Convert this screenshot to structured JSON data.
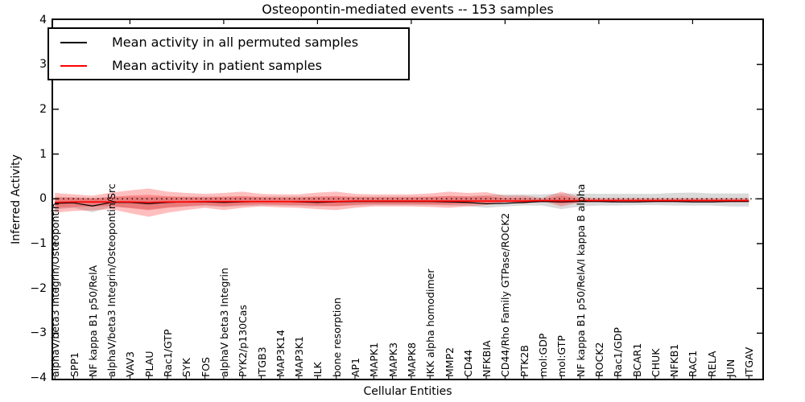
{
  "figure": {
    "title": "Osteopontin-mediated events -- 153 samples",
    "xlabel": "Cellular Entities",
    "ylabel": "Inferred Activity"
  },
  "legend": {
    "entries": [
      {
        "label": "Mean activity in all permuted samples",
        "color": "#000000"
      },
      {
        "label": "Mean activity in patient samples",
        "color": "#ff0000"
      }
    ]
  },
  "axes": {
    "ytick_labels": [
      "4",
      "3",
      "2",
      "1",
      "0",
      "−1",
      "−2",
      "−3",
      "−4"
    ],
    "ytick_values": [
      4,
      3,
      2,
      1,
      0,
      -1,
      -2,
      -3,
      -4
    ]
  },
  "chart_data": {
    "type": "line",
    "title": "Osteopontin-mediated events -- 153 samples",
    "xlabel": "Cellular Entities",
    "ylabel": "Inferred Activity",
    "ylim": [
      -4,
      4
    ],
    "reference_line_y": 0,
    "legend_position": "upper left",
    "grid": false,
    "categories": [
      "alphaV/beta3 Integrin/Osteopontin",
      "SPP1",
      "NF kappa B1 p50/RelA",
      "alphaV/beta3 Integrin/Osteopontin/Src",
      "VAV3",
      "PLAU",
      "Rac1/GTP",
      "SYK",
      "FOS",
      "alphaV beta3 Integrin",
      "PYK2/p130Cas",
      "ITGB3",
      "MAP3K14",
      "MAP3K1",
      "ILK",
      "bone resorption",
      "AP1",
      "MAPK1",
      "MAPK3",
      "MAPK8",
      "IKK alpha homodimer",
      "MMP2",
      "CD44",
      "NFKBIA",
      "CD44/Rho Family GTPase/ROCK2",
      "PTK2B",
      "mol:GDP",
      "mol:GTP",
      "NF kappa B1 p50/RelA/I kappa B alpha",
      "ROCK2",
      "Rac1/GDP",
      "BCAR1",
      "CHUK",
      "NFKB1",
      "RAC1",
      "RELA",
      "JUN",
      "ITGAV"
    ],
    "series": [
      {
        "name": "Mean activity in all permuted samples",
        "color": "#000000",
        "band_color": "#8c8c8c",
        "values": [
          -0.1,
          -0.09,
          -0.16,
          -0.08,
          -0.08,
          -0.11,
          -0.08,
          -0.07,
          -0.07,
          -0.08,
          -0.07,
          -0.06,
          -0.06,
          -0.07,
          -0.08,
          -0.07,
          -0.06,
          -0.06,
          -0.06,
          -0.06,
          -0.06,
          -0.07,
          -0.08,
          -0.11,
          -0.1,
          -0.08,
          -0.06,
          -0.07,
          -0.06,
          -0.06,
          -0.07,
          -0.07,
          -0.06,
          -0.06,
          -0.07,
          -0.07,
          -0.06,
          -0.06
        ],
        "band_upper": [
          0.04,
          0.04,
          0.02,
          0.04,
          0.05,
          0.04,
          0.05,
          0.05,
          0.05,
          0.05,
          0.05,
          0.05,
          0.05,
          0.05,
          0.05,
          0.05,
          0.05,
          0.05,
          0.05,
          0.05,
          0.05,
          0.06,
          0.06,
          0.08,
          0.1,
          0.1,
          0.1,
          0.12,
          0.12,
          0.11,
          0.11,
          0.11,
          0.11,
          0.13,
          0.14,
          0.12,
          0.12,
          0.12
        ],
        "band_lower": [
          -0.24,
          -0.2,
          -0.3,
          -0.18,
          -0.2,
          -0.24,
          -0.19,
          -0.17,
          -0.16,
          -0.18,
          -0.16,
          -0.15,
          -0.15,
          -0.16,
          -0.17,
          -0.16,
          -0.15,
          -0.14,
          -0.14,
          -0.14,
          -0.14,
          -0.15,
          -0.16,
          -0.2,
          -0.17,
          -0.15,
          -0.15,
          -0.23,
          -0.17,
          -0.15,
          -0.15,
          -0.14,
          -0.14,
          -0.15,
          -0.15,
          -0.15,
          -0.17,
          -0.17
        ]
      },
      {
        "name": "Mean activity in patient samples",
        "color": "#ff0000",
        "band_color": "#ff0000",
        "values": [
          -0.08,
          -0.07,
          -0.07,
          -0.07,
          -0.07,
          -0.08,
          -0.07,
          -0.07,
          -0.06,
          -0.06,
          -0.06,
          -0.06,
          -0.06,
          -0.06,
          -0.06,
          -0.06,
          -0.05,
          -0.05,
          -0.05,
          -0.05,
          -0.05,
          -0.05,
          -0.05,
          -0.05,
          -0.05,
          -0.05,
          -0.04,
          -0.04,
          -0.04,
          -0.04,
          -0.04,
          -0.04,
          -0.04,
          -0.04,
          -0.04,
          -0.04,
          -0.04,
          -0.04
        ],
        "band_upper": [
          0.13,
          0.1,
          0.07,
          0.14,
          0.19,
          0.23,
          0.16,
          0.13,
          0.11,
          0.13,
          0.16,
          0.11,
          0.1,
          0.1,
          0.14,
          0.16,
          0.11,
          0.1,
          0.1,
          0.1,
          0.12,
          0.16,
          0.13,
          0.15,
          0.07,
          0.07,
          0.02,
          0.16,
          0.03,
          0.02,
          0.02,
          0.02,
          0.02,
          0.02,
          0.02,
          0.02,
          0.02,
          0.02
        ],
        "band_lower": [
          -0.31,
          -0.27,
          -0.26,
          -0.23,
          -0.32,
          -0.4,
          -0.31,
          -0.25,
          -0.2,
          -0.25,
          -0.2,
          -0.17,
          -0.19,
          -0.2,
          -0.23,
          -0.25,
          -0.2,
          -0.17,
          -0.17,
          -0.17,
          -0.18,
          -0.2,
          -0.17,
          -0.14,
          -0.08,
          -0.11,
          -0.05,
          -0.17,
          -0.08,
          -0.07,
          -0.07,
          -0.07,
          -0.07,
          -0.07,
          -0.07,
          -0.07,
          -0.07,
          -0.07
        ]
      }
    ]
  }
}
